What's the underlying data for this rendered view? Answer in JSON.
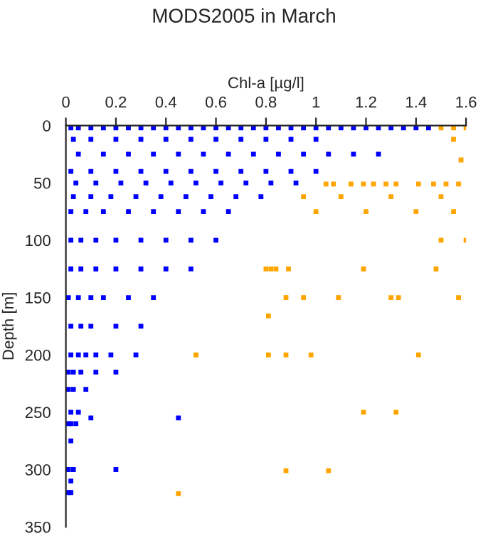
{
  "chart_data": {
    "type": "scatter",
    "title": "MODS2005 in March",
    "xlabel": "Chl-a [µg/l]",
    "ylabel": "Depth [m]",
    "xlim": [
      0,
      1.6
    ],
    "xticks": [
      0,
      0.2,
      0.4,
      0.6,
      0.8,
      1,
      1.2,
      1.4,
      1.6
    ],
    "ylim": [
      350,
      0
    ],
    "yticks": [
      0,
      50,
      100,
      150,
      200,
      250,
      300,
      350
    ],
    "grid": false,
    "marker": "square",
    "series": [
      {
        "color": "#0000ff",
        "x": [
          0.02,
          0.05,
          0.1,
          0.15,
          0.2,
          0.25,
          0.3,
          0.35,
          0.4,
          0.45,
          0.5,
          0.55,
          0.6,
          0.65,
          0.7,
          0.75,
          0.8,
          0.85,
          0.9,
          0.95,
          1.0,
          1.05,
          1.1,
          1.15,
          1.2,
          1.25,
          1.3,
          1.35,
          1.4,
          1.45,
          0.03,
          0.1,
          0.2,
          0.3,
          0.4,
          0.5,
          0.6,
          0.7,
          0.8,
          0.9,
          1.0,
          0.05,
          0.15,
          0.25,
          0.35,
          0.45,
          0.55,
          0.65,
          0.75,
          0.85,
          0.95,
          1.05,
          1.15,
          1.25,
          0.02,
          0.1,
          0.2,
          0.3,
          0.4,
          0.5,
          0.6,
          0.7,
          0.8,
          0.9,
          1.0,
          0.04,
          0.12,
          0.22,
          0.32,
          0.42,
          0.52,
          0.62,
          0.72,
          0.82,
          0.92,
          0.03,
          0.1,
          0.18,
          0.28,
          0.38,
          0.48,
          0.58,
          0.68,
          0.78,
          0.02,
          0.08,
          0.15,
          0.25,
          0.35,
          0.45,
          0.55,
          0.65,
          0.02,
          0.06,
          0.12,
          0.2,
          0.3,
          0.4,
          0.5,
          0.6,
          0.02,
          0.06,
          0.12,
          0.2,
          0.3,
          0.4,
          0.5,
          0.01,
          0.05,
          0.1,
          0.15,
          0.25,
          0.35,
          0.02,
          0.06,
          0.1,
          0.2,
          0.3,
          0.02,
          0.05,
          0.08,
          0.12,
          0.18,
          0.28,
          0.01,
          0.03,
          0.06,
          0.12,
          0.2,
          0.01,
          0.03,
          0.08,
          0.02,
          0.05,
          0.01,
          0.02,
          0.04,
          0.02,
          0.1,
          0.45,
          0.01,
          0.03,
          0.02,
          0.2,
          0.01,
          0.02
        ],
        "values": [
          2,
          2,
          2,
          2,
          2,
          2,
          2,
          2,
          2,
          2,
          2,
          2,
          2,
          2,
          2,
          2,
          2,
          2,
          2,
          2,
          2,
          2,
          2,
          2,
          2,
          2,
          2,
          2,
          2,
          2,
          12,
          12,
          12,
          12,
          12,
          12,
          12,
          12,
          12,
          12,
          12,
          25,
          25,
          25,
          25,
          25,
          25,
          25,
          25,
          25,
          25,
          25,
          25,
          25,
          40,
          40,
          40,
          40,
          40,
          40,
          40,
          40,
          40,
          40,
          40,
          50,
          50,
          50,
          50,
          50,
          50,
          50,
          50,
          50,
          50,
          62,
          62,
          62,
          62,
          62,
          62,
          62,
          62,
          62,
          75,
          75,
          75,
          75,
          75,
          75,
          75,
          75,
          100,
          100,
          100,
          100,
          100,
          100,
          100,
          100,
          125,
          125,
          125,
          125,
          125,
          125,
          125,
          150,
          150,
          150,
          150,
          150,
          150,
          175,
          175,
          175,
          175,
          175,
          200,
          200,
          200,
          200,
          200,
          200,
          215,
          215,
          215,
          215,
          215,
          230,
          230,
          230,
          250,
          250,
          260,
          260,
          260,
          275,
          255,
          255,
          300,
          300,
          310,
          300,
          320,
          320
        ]
      },
      {
        "color": "#ffa500",
        "x": [
          1.5,
          1.55,
          1.6,
          1.55,
          1.58,
          1.04,
          1.07,
          1.14,
          1.19,
          1.23,
          1.28,
          1.32,
          1.41,
          1.47,
          1.52,
          1.57,
          0.95,
          1.1,
          1.3,
          1.5,
          1.0,
          1.2,
          1.4,
          1.55,
          1.5,
          1.6,
          0.8,
          0.82,
          0.84,
          0.89,
          1.19,
          1.48,
          0.88,
          0.95,
          1.09,
          1.3,
          1.33,
          1.57,
          0.81,
          0.52,
          0.81,
          0.88,
          0.98,
          1.41,
          1.19,
          1.32,
          0.88,
          1.05,
          0.45
        ],
        "values": [
          2,
          2,
          2,
          12,
          30,
          51,
          51,
          51,
          51,
          51,
          51,
          51,
          51,
          51,
          51,
          51,
          62,
          62,
          62,
          62,
          75,
          75,
          75,
          75,
          100,
          100,
          125,
          125,
          125,
          125,
          125,
          125,
          150,
          150,
          150,
          150,
          150,
          150,
          166,
          200,
          200,
          200,
          200,
          200,
          250,
          250,
          301,
          301,
          321
        ]
      }
    ]
  }
}
